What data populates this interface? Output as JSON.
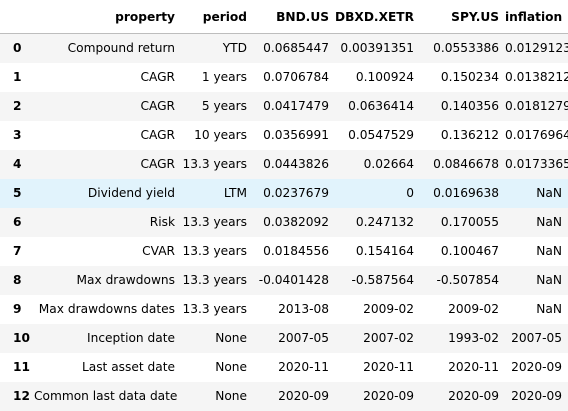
{
  "table": {
    "columns": [
      "",
      "property",
      "period",
      "BND.US",
      "DBXD.XETR",
      "SPY.US",
      "inflation"
    ],
    "rows": [
      {
        "index": "0",
        "cells": [
          "Compound return",
          "YTD",
          "0.0685447",
          "0.00391351",
          "0.0553386",
          "0.0129123"
        ]
      },
      {
        "index": "1",
        "cells": [
          "CAGR",
          "1 years",
          "0.0706784",
          "0.100924",
          "0.150234",
          "0.0138212"
        ]
      },
      {
        "index": "2",
        "cells": [
          "CAGR",
          "5 years",
          "0.0417479",
          "0.0636414",
          "0.140356",
          "0.0181279"
        ]
      },
      {
        "index": "3",
        "cells": [
          "CAGR",
          "10 years",
          "0.0356991",
          "0.0547529",
          "0.136212",
          "0.0176964"
        ]
      },
      {
        "index": "4",
        "cells": [
          "CAGR",
          "13.3 years",
          "0.0443826",
          "0.02664",
          "0.0846678",
          "0.0173365"
        ]
      },
      {
        "index": "5",
        "cells": [
          "Dividend yield",
          "LTM",
          "0.0237679",
          "0",
          "0.0169638",
          "NaN"
        ]
      },
      {
        "index": "6",
        "cells": [
          "Risk",
          "13.3 years",
          "0.0382092",
          "0.247132",
          "0.170055",
          "NaN"
        ]
      },
      {
        "index": "7",
        "cells": [
          "CVAR",
          "13.3 years",
          "0.0184556",
          "0.154164",
          "0.100467",
          "NaN"
        ]
      },
      {
        "index": "8",
        "cells": [
          "Max drawdowns",
          "13.3 years",
          "-0.0401428",
          "-0.587564",
          "-0.507854",
          "NaN"
        ]
      },
      {
        "index": "9",
        "cells": [
          "Max drawdowns dates",
          "13.3 years",
          "2013-08",
          "2009-02",
          "2009-02",
          "NaN"
        ]
      },
      {
        "index": "10",
        "cells": [
          "Inception date",
          "None",
          "2007-05",
          "2007-02",
          "1993-02",
          "2007-05"
        ]
      },
      {
        "index": "11",
        "cells": [
          "Last asset date",
          "None",
          "2020-11",
          "2020-11",
          "2020-11",
          "2020-09"
        ]
      },
      {
        "index": "12",
        "cells": [
          "Common last data date",
          "None",
          "2020-09",
          "2020-09",
          "2020-09",
          "2020-09"
        ]
      }
    ],
    "highlighted_row": "5",
    "colors": {
      "stripe": "#f5f5f5",
      "hover": "#e1f3fc",
      "header_border": "#bdbdbd"
    }
  }
}
